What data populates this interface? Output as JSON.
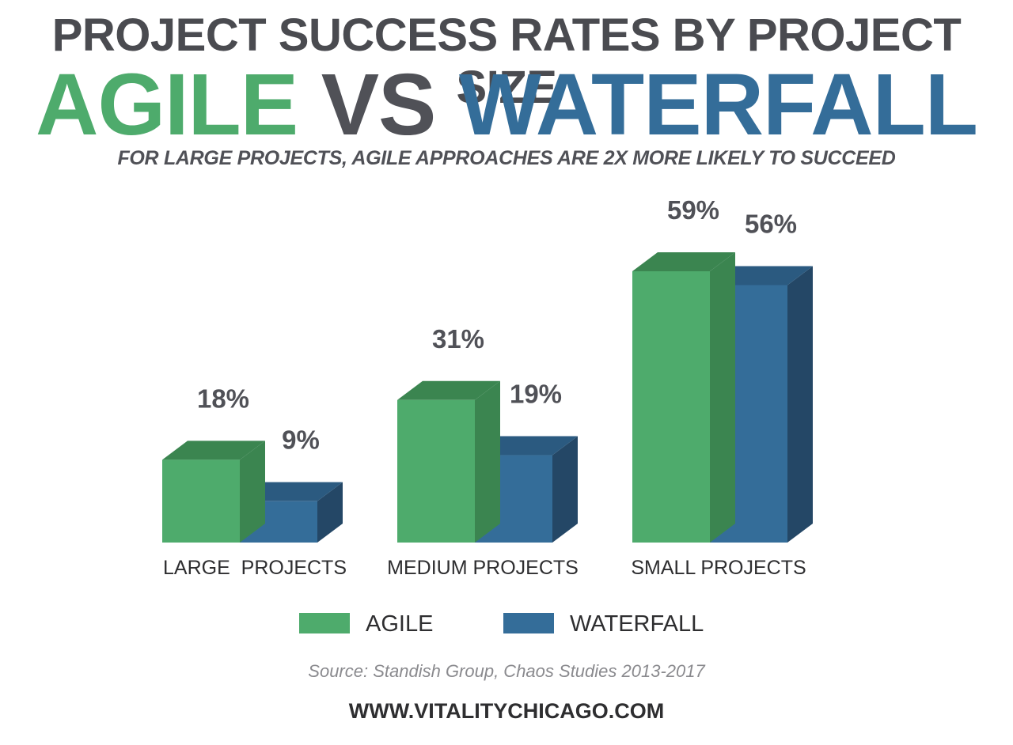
{
  "header": {
    "title": "PROJECT SUCCESS RATES BY PROJECT SIZE",
    "headline_agile": "AGILE",
    "headline_vs": "VS",
    "headline_waterfall": "WATERFALL",
    "subtitle": "FOR LARGE PROJECTS, AGILE APPROACHES ARE 2X MORE LIKELY TO SUCCEED"
  },
  "chart_data": {
    "type": "bar",
    "title": "PROJECT SUCCESS RATES BY PROJECT SIZE",
    "categories": [
      "LARGE  PROJECTS",
      "MEDIUM PROJECTS",
      "SMALL PROJECTS"
    ],
    "series": [
      {
        "name": "AGILE",
        "values": [
          18,
          31,
          59
        ],
        "labels": [
          "18%",
          "31%",
          "59%"
        ],
        "color": "#4eab6c",
        "top_color": "#3b8550",
        "side_color": "#3b8550"
      },
      {
        "name": "WATERFALL",
        "values": [
          9,
          19,
          56
        ],
        "labels": [
          "9%",
          "19%",
          "56%"
        ],
        "color": "#346d99",
        "top_color": "#2b5a80",
        "side_color": "#244766"
      }
    ],
    "unit": "%",
    "legend_position": "bottom",
    "grid": false,
    "ylim": [
      0,
      59
    ]
  },
  "footer": {
    "source": "Source: Standish Group, Chaos Studies 2013-2017",
    "site": "WWW.VITALITYCHICAGO.COM"
  }
}
